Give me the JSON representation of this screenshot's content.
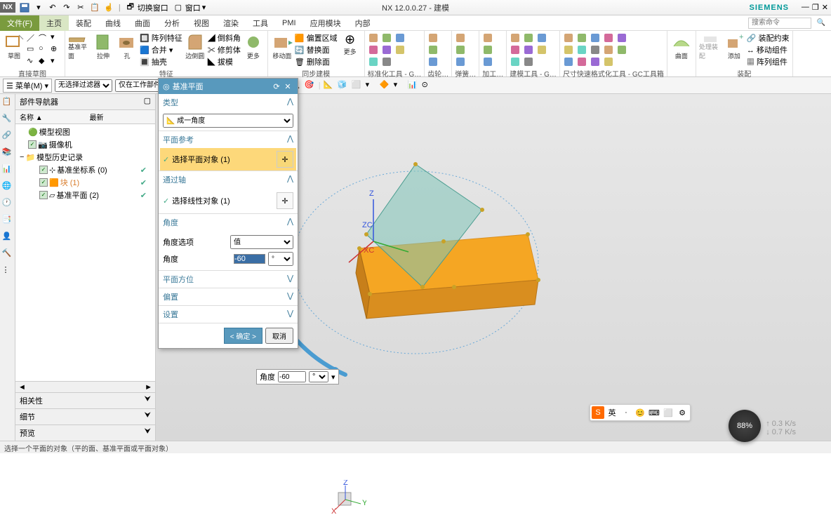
{
  "app": {
    "title": "NX 12.0.0.27 - 建模",
    "brand": "SIEMENS",
    "logo": "NX"
  },
  "qat": {
    "items": [
      "save-icon",
      "undo-icon",
      "redo-icon",
      "touch-icon"
    ],
    "switch_window": "切换窗口",
    "window": "窗口"
  },
  "menu": {
    "file": "文件(F)",
    "tabs": [
      "主页",
      "装配",
      "曲线",
      "曲面",
      "分析",
      "视图",
      "渲染",
      "工具",
      "PMI",
      "应用模块",
      "内部"
    ],
    "active": 0,
    "search_placeholder": "搜索命令"
  },
  "ribbon": {
    "groups": [
      {
        "label": "直接草图",
        "big": [
          {
            "icon": "sketch",
            "label": "草图"
          }
        ],
        "small_rows": [
          [
            "line",
            "arc",
            "more"
          ],
          [
            "rect",
            "circ",
            "more"
          ]
        ]
      },
      {
        "label": "特征",
        "big": [
          {
            "icon": "plane",
            "label": "基准平面"
          },
          {
            "icon": "extrude",
            "label": "拉伸"
          },
          {
            "icon": "hole",
            "label": "孔"
          }
        ],
        "small_rows": [
          [
            "pattern",
            "阵列特征"
          ],
          [
            "unite",
            "合并"
          ],
          [
            "shell",
            "抽壳"
          ]
        ],
        "small2": [
          [
            "chamfer",
            "倒斜角"
          ],
          [
            "trim",
            "修剪体"
          ],
          [
            "draft",
            "拔模"
          ]
        ],
        "misc": [
          [
            "round",
            "边倒圆"
          ],
          [
            "more",
            "更多"
          ]
        ]
      },
      {
        "label": "同步建模",
        "big": [
          {
            "icon": "moveface",
            "label": "移动面"
          }
        ],
        "small": [
          [
            "region",
            "偏置区域"
          ],
          [
            "replace",
            "替换面"
          ],
          [
            "delete",
            "删除面"
          ],
          [
            "more",
            "更多"
          ]
        ]
      },
      {
        "label": "标准化工具 - G…",
        "icons": 8
      },
      {
        "label": "齿轮…",
        "icons": 3
      },
      {
        "label": "弹簧…",
        "icons": 3
      },
      {
        "label": "加工…",
        "icons": 3
      },
      {
        "label": "建模工具 - G…",
        "icons": 8
      },
      {
        "label": "尺寸快速格式化工具 - GC工具箱",
        "icons": 14
      },
      {
        "label": "",
        "big": [
          {
            "icon": "surf",
            "label": "曲面"
          }
        ]
      },
      {
        "label": "装配",
        "big": [
          {
            "icon": "asmwork",
            "label": "处理装配"
          },
          {
            "icon": "add",
            "label": "添加"
          }
        ],
        "small": [
          [
            "c1",
            "装配约束"
          ],
          [
            "c2",
            "移动组件"
          ],
          [
            "c3",
            "阵列组件"
          ]
        ]
      }
    ]
  },
  "optbar": {
    "menu_btn": "菜单(M)",
    "filter1_options": [
      "无选择过滤器"
    ],
    "filter2_options": [
      "仅在工作部件内"
    ]
  },
  "nav": {
    "title": "部件导航器",
    "cols": [
      "名称 ▲",
      "最新"
    ],
    "tree": [
      {
        "indent": 0,
        "icon": "model",
        "label": "模型视图",
        "check": false
      },
      {
        "indent": 0,
        "icon": "camera",
        "label": "摄像机",
        "check": true
      },
      {
        "indent": 0,
        "icon": "folder",
        "label": "模型历史记录",
        "check": false,
        "open": true
      },
      {
        "indent": 1,
        "icon": "csys",
        "label": "基准坐标系 (0)",
        "check": true,
        "tick": true
      },
      {
        "indent": 1,
        "icon": "block",
        "label": "块 (1)",
        "check": true,
        "tick": true,
        "sel": true
      },
      {
        "indent": 1,
        "icon": "dplane",
        "label": "基准平面 (2)",
        "check": true,
        "tick": true
      }
    ],
    "sections": [
      "相关性",
      "细节",
      "预览"
    ]
  },
  "dialog": {
    "title": "基准平面",
    "type_label": "类型",
    "type_value": "成一角度",
    "ref_label": "平面参考",
    "ref_select": "选择平面对象 (1)",
    "axis_label": "通过轴",
    "axis_select": "选择线性对象 (1)",
    "angle_label": "角度",
    "angle_opt_label": "角度选项",
    "angle_opt_value": "值",
    "angle_field_label": "角度",
    "angle_value": "-60",
    "angle_unit": "°",
    "orient_label": "平面方位",
    "offset_label": "偏置",
    "settings_label": "设置",
    "ok": "< 确定 >",
    "cancel": "取消"
  },
  "float_input": {
    "label": "角度",
    "value": "-60",
    "unit": "°"
  },
  "viewport": {
    "block_color": "#f5a623",
    "block_side": "#d98e1f",
    "plane_color": "#7fc4b8",
    "plane_opacity": 0.55,
    "circle_color": "#6aa9d8",
    "arc_color": "#4a9cd1",
    "axes": {
      "x": "XC",
      "y": "YC",
      "z": "ZC"
    }
  },
  "status": "选择一个平面的对象（平的面、基准平面或平面对象）",
  "ime": {
    "items": [
      "S",
      "英",
      "·",
      "😊",
      "⌨",
      "⬜",
      "⚙"
    ]
  },
  "perf": {
    "pct": "88%",
    "r1": "0.3 K/s",
    "r2": "0.7 K/s"
  }
}
